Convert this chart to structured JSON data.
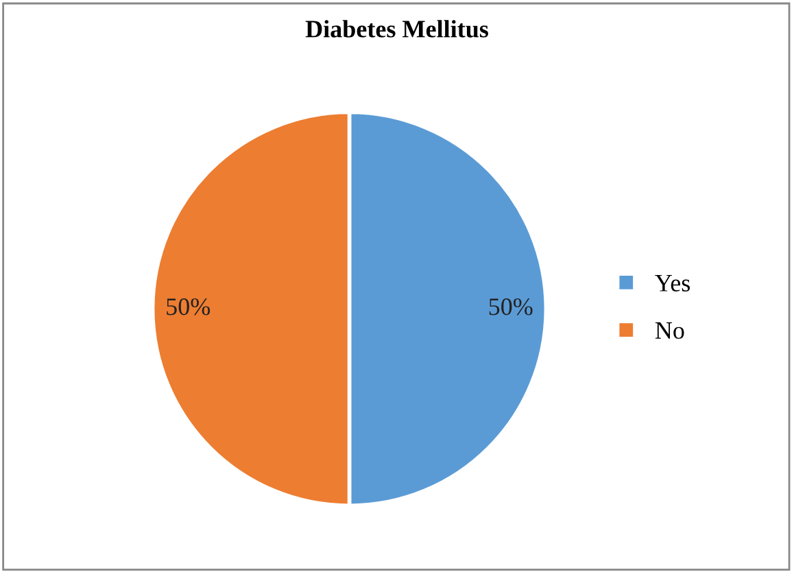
{
  "chart_data": {
    "type": "pie",
    "title": "Diabetes Mellitus",
    "categories": [
      "Yes",
      "No"
    ],
    "values": [
      50,
      50
    ],
    "colors": [
      "#5b9bd5",
      "#ed7d31"
    ],
    "value_labels": [
      "50%",
      "50%"
    ],
    "legend": "right"
  }
}
